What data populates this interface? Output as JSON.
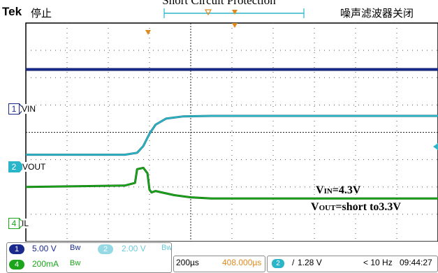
{
  "figure_title": "Short Circuit Protection",
  "scope": {
    "brand": "Tek",
    "run_state": "停止",
    "noise_filter_label": "噪声滤波器关闭",
    "trigger_marker": "T",
    "ch_channel_number": "1",
    "ch_channel_number_2": "2",
    "ch_channel_number_4": "4"
  },
  "channels": [
    {
      "number": "1",
      "label": "VIN",
      "color": "#1a2a8c"
    },
    {
      "number": "2",
      "label": "VOUT",
      "color": "#2bb5c9"
    },
    {
      "number": "4",
      "label": "IL",
      "color": "#1aa51a"
    }
  ],
  "annotation": {
    "line1": "V",
    "line1_sub": "IN",
    "line1_rest": "=4.3V",
    "line2": "V",
    "line2_sub": "OUT",
    "line2_rest": "=short to3.3V"
  },
  "status_bar": {
    "ch1_scale": "5.00 V",
    "ch1_bw": "Bw",
    "ch2_scale": "2.00 V",
    "ch2_bw": "Bw",
    "ch4_scale": "200mA",
    "ch4_bw": "Bw",
    "timebase": "200µs",
    "position": "408.000µs",
    "trigger_level": "1.28 V",
    "freq": "< 10 Hz",
    "time": "09:44:27"
  },
  "chart_data": {
    "type": "line",
    "title": "Short Circuit Protection",
    "xlabel": "",
    "ylabel": "",
    "xlim": [
      -4,
      6
    ],
    "ylim": [
      -4,
      4
    ],
    "grid": true,
    "series": [
      {
        "name": "VIN",
        "color": "#1a2a8c",
        "x": [
          -4,
          6
        ],
        "y": [
          2.3,
          2.3
        ]
      },
      {
        "name": "VOUT",
        "color": "#2bb5c9",
        "x": [
          -4.0,
          -1.6,
          -1.3,
          -1.15,
          -1.0,
          -0.85,
          -0.6,
          -0.2,
          0.5,
          6.0
        ],
        "y": [
          -0.82,
          -0.82,
          -0.75,
          -0.5,
          -0.05,
          0.28,
          0.5,
          0.58,
          0.6,
          0.6
        ]
      },
      {
        "name": "IL",
        "color": "#1aa51a",
        "x": [
          -4.0,
          -1.6,
          -1.35,
          -1.3,
          -1.15,
          -1.05,
          -1.0,
          -0.95,
          -0.85,
          -0.7,
          -0.4,
          0.0,
          0.5,
          6.0
        ],
        "y": [
          -2.0,
          -1.95,
          -1.85,
          -1.35,
          -1.3,
          -1.5,
          -2.1,
          -2.2,
          -2.15,
          -2.2,
          -2.3,
          -2.38,
          -2.42,
          -2.42
        ]
      }
    ]
  }
}
